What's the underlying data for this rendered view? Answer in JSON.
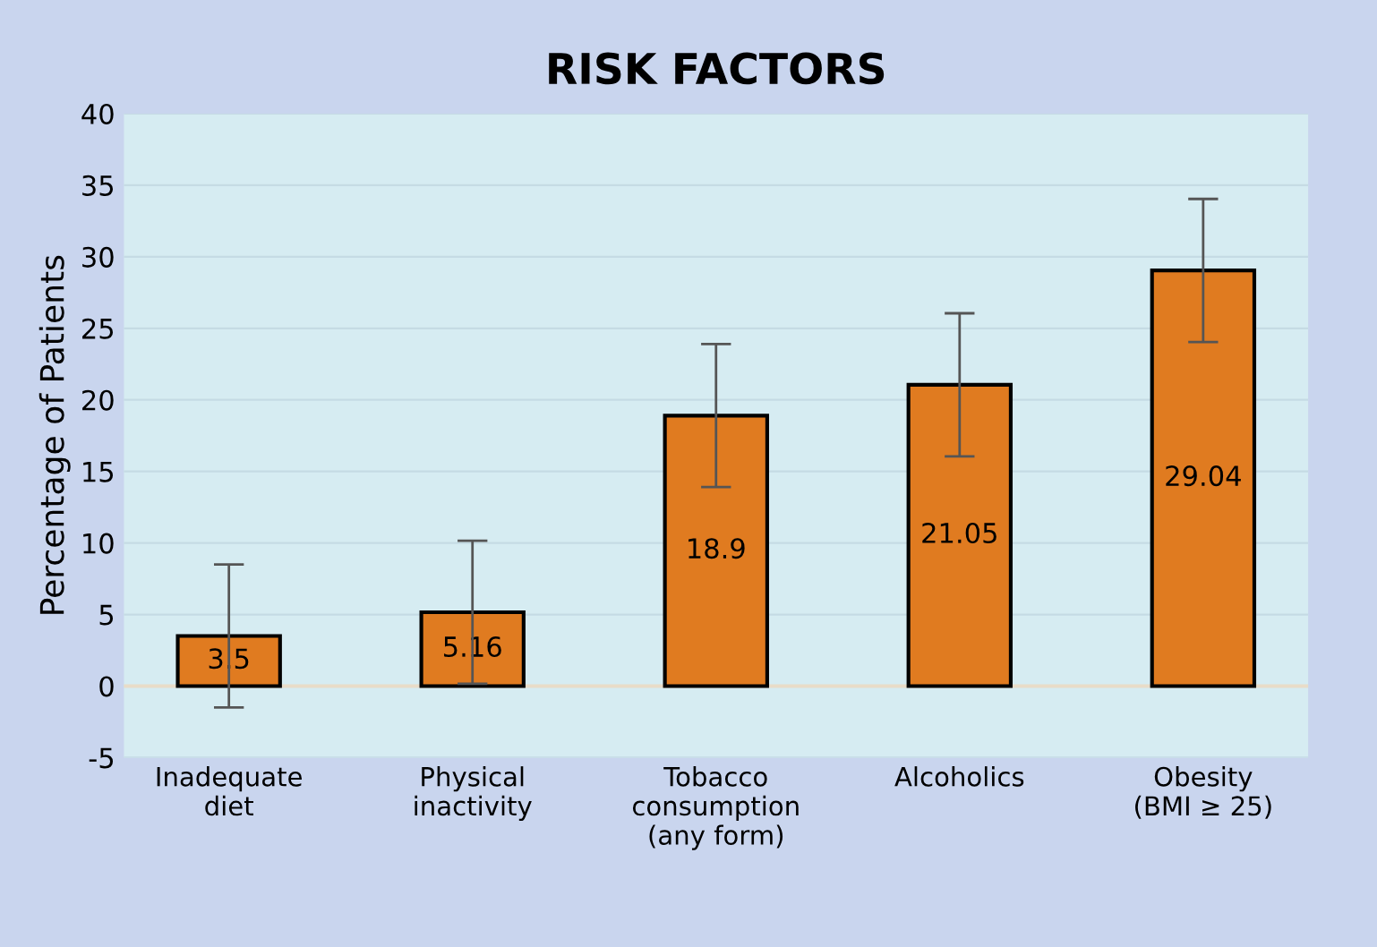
{
  "chart_data": {
    "type": "bar",
    "title": "RISK FACTORS",
    "ylabel": "Percentage of Patients",
    "categories": [
      "Inadequate\ndiet",
      "Physical\ninactivity",
      "Tobacco\nconsumption\n(any form)",
      "Alcoholics",
      "Obesity\n(BMI ≥ 25)"
    ],
    "values": [
      3.5,
      5.16,
      18.9,
      21.05,
      29.04
    ],
    "errors": [
      5,
      5,
      5,
      5,
      5
    ],
    "color": "#e07b20",
    "data_labels": true,
    "ylim": [
      -5,
      40
    ],
    "yticks": [
      -5,
      0,
      5,
      10,
      15,
      20,
      25,
      30,
      35,
      40
    ],
    "grid": "y"
  }
}
